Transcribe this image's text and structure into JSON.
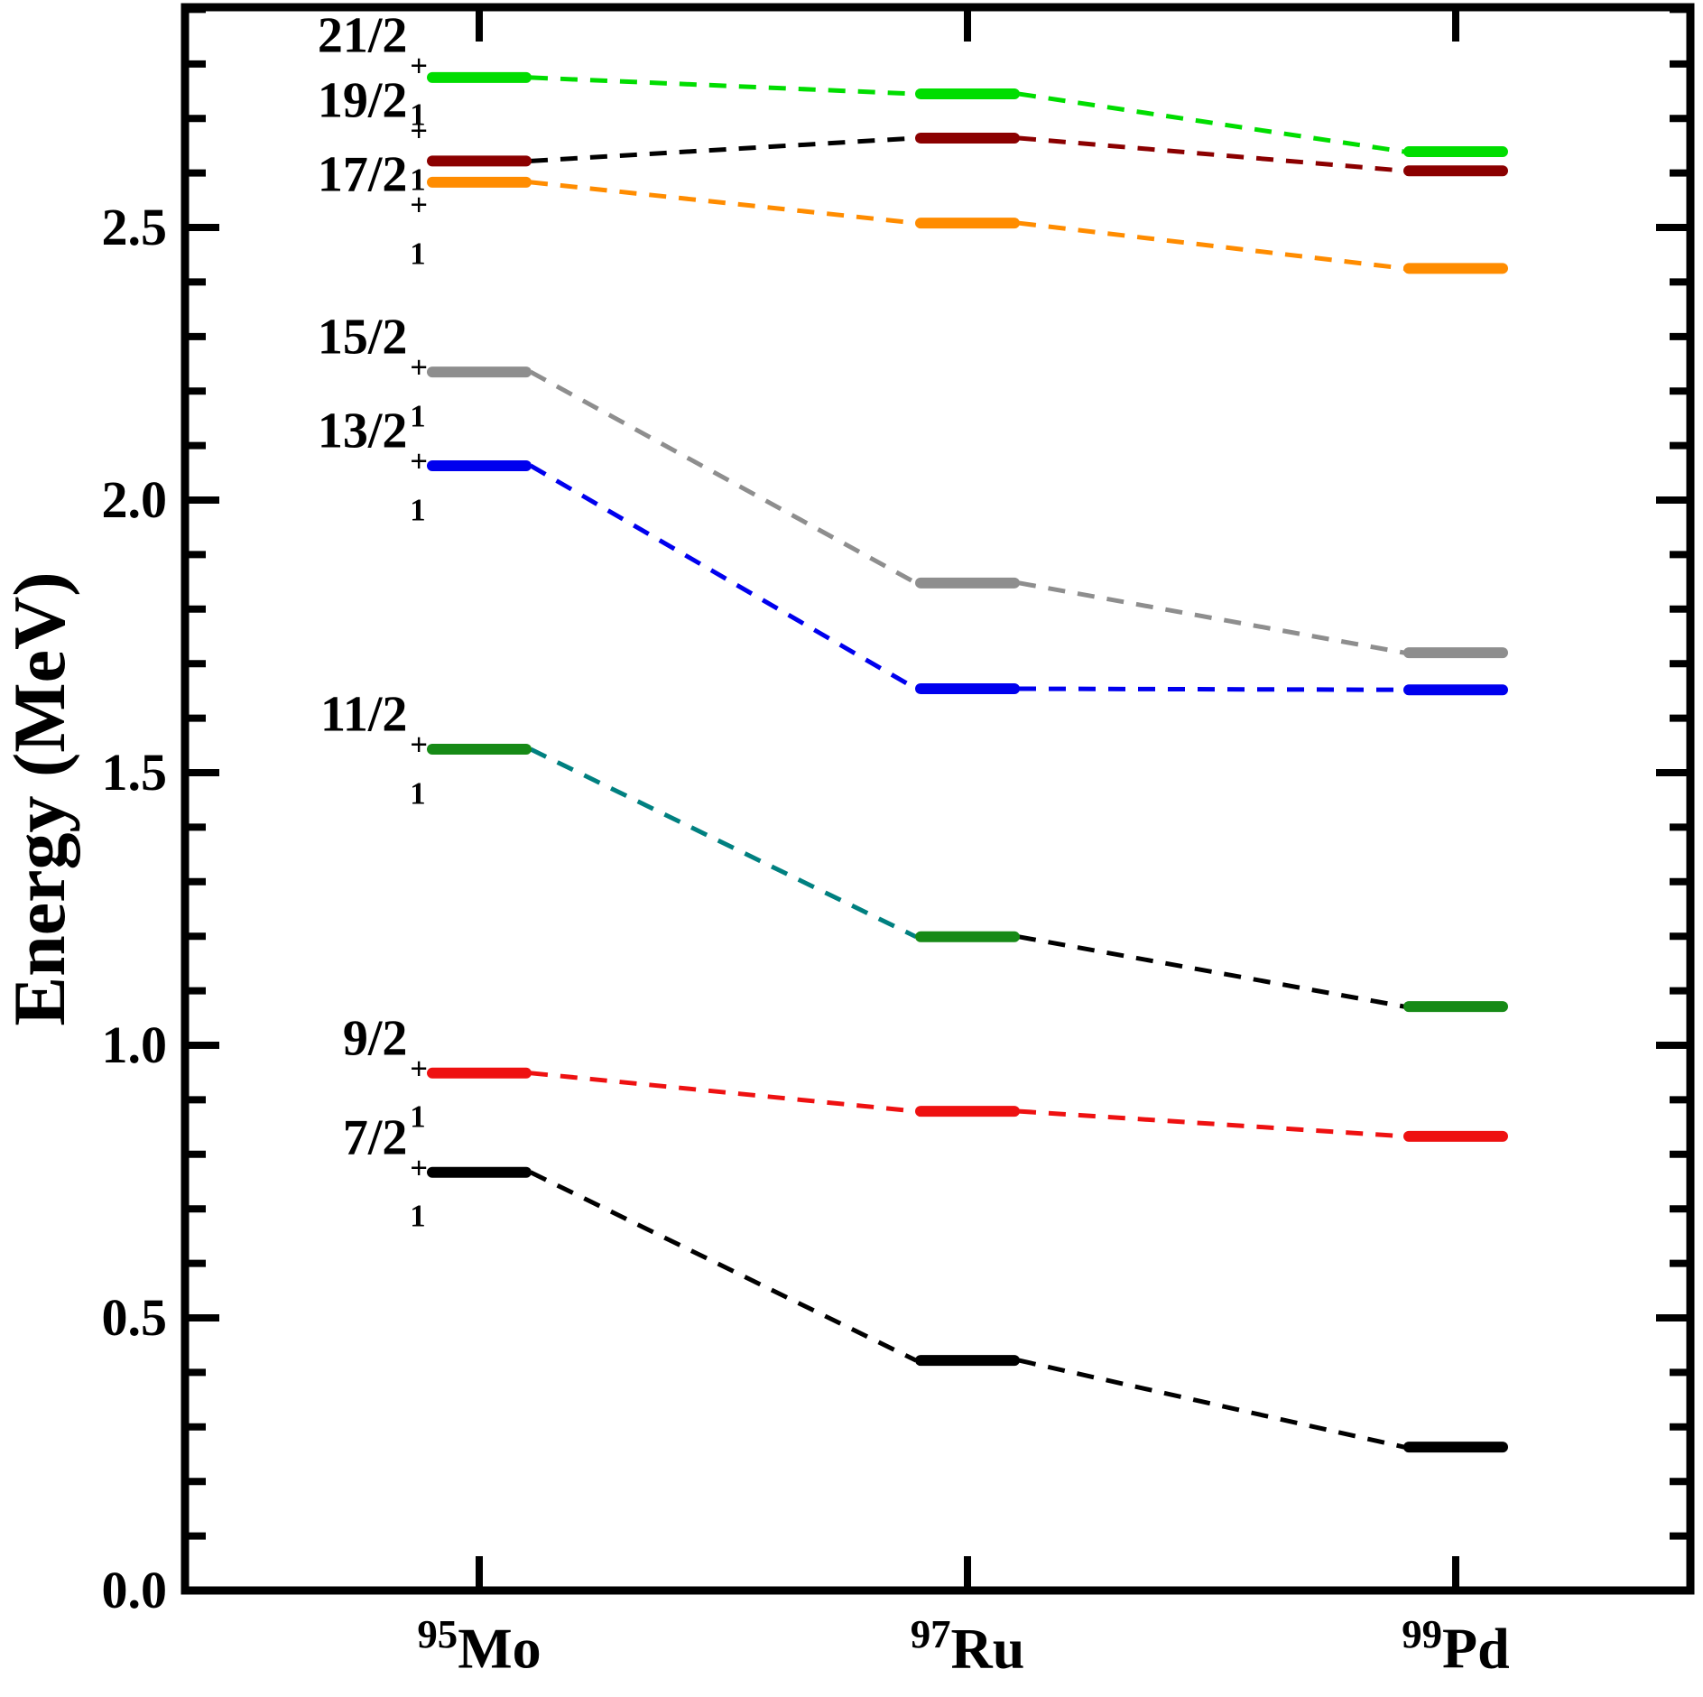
{
  "y_axis": {
    "title": "Energy (MeV)",
    "ticks": [
      "0.0",
      "0.5",
      "1.0",
      "1.5",
      "2.0",
      "2.5"
    ],
    "major_step": 0.5,
    "minor_step": 0.1
  },
  "x_axis": {
    "categories": [
      {
        "mass": "95",
        "element": "Mo"
      },
      {
        "mass": "97",
        "element": "Ru"
      },
      {
        "mass": "99",
        "element": "Pd"
      }
    ]
  },
  "chart_data": {
    "type": "line",
    "subtype": "energy-level-diagram",
    "title": "",
    "xlabel": "",
    "ylabel": "Energy (MeV)",
    "ylim": [
      0,
      2.904
    ],
    "grid": false,
    "categories": [
      "95Mo",
      "97Ru",
      "99Pd"
    ],
    "series": [
      {
        "name": "7/2+_1",
        "label_base": "7/2",
        "label_sup": "+",
        "label_sub": "1",
        "color": "#000000",
        "connector_colors": [
          "#000000",
          "#000000"
        ],
        "values": [
          0.767,
          0.422,
          0.263
        ]
      },
      {
        "name": "9/2+_1",
        "label_base": "9/2",
        "label_sup": "+",
        "label_sub": "1",
        "color": "#ee1111",
        "connector_colors": [
          "#ee1111",
          "#ee1111"
        ],
        "values": [
          0.949,
          0.879,
          0.833
        ]
      },
      {
        "name": "11/2+_1",
        "label_base": "11/2",
        "label_sup": "+",
        "label_sub": "1",
        "color": "#168a16",
        "connector_colors": [
          "#008080",
          "#000000"
        ],
        "values": [
          1.543,
          1.199,
          1.071
        ]
      },
      {
        "name": "13/2+_1",
        "label_base": "13/2",
        "label_sup": "+",
        "label_sub": "1",
        "color": "#0000ee",
        "connector_colors": [
          "#0000ee",
          "#0000ee"
        ],
        "values": [
          2.063,
          1.654,
          1.652
        ]
      },
      {
        "name": "15/2+_1",
        "label_base": "15/2",
        "label_sup": "+",
        "label_sub": "1",
        "color": "#8e8e8e",
        "connector_colors": [
          "#8e8e8e",
          "#8e8e8e"
        ],
        "values": [
          2.235,
          1.848,
          1.72
        ]
      },
      {
        "name": "17/2+_1",
        "label_base": "17/2",
        "label_sup": "+",
        "label_sub": "1",
        "color": "#ff8c00",
        "connector_colors": [
          "#ff8c00",
          "#ff8c00"
        ],
        "values": [
          2.583,
          2.508,
          2.425
        ]
      },
      {
        "name": "19/2+_1",
        "label_base": "19/2",
        "label_sup": "+",
        "label_sub": "1",
        "color": "#8b0000",
        "connector_colors": [
          "#000000",
          "#8b0000"
        ],
        "values": [
          2.622,
          2.664,
          2.604
        ]
      },
      {
        "name": "21/2+_1",
        "label_base": "21/2",
        "label_sup": "+",
        "label_sub": "1",
        "color": "#00dd00",
        "connector_colors": [
          "#00dd00",
          "#00dd00"
        ],
        "values": [
          2.775,
          2.745,
          2.639
        ]
      }
    ]
  }
}
